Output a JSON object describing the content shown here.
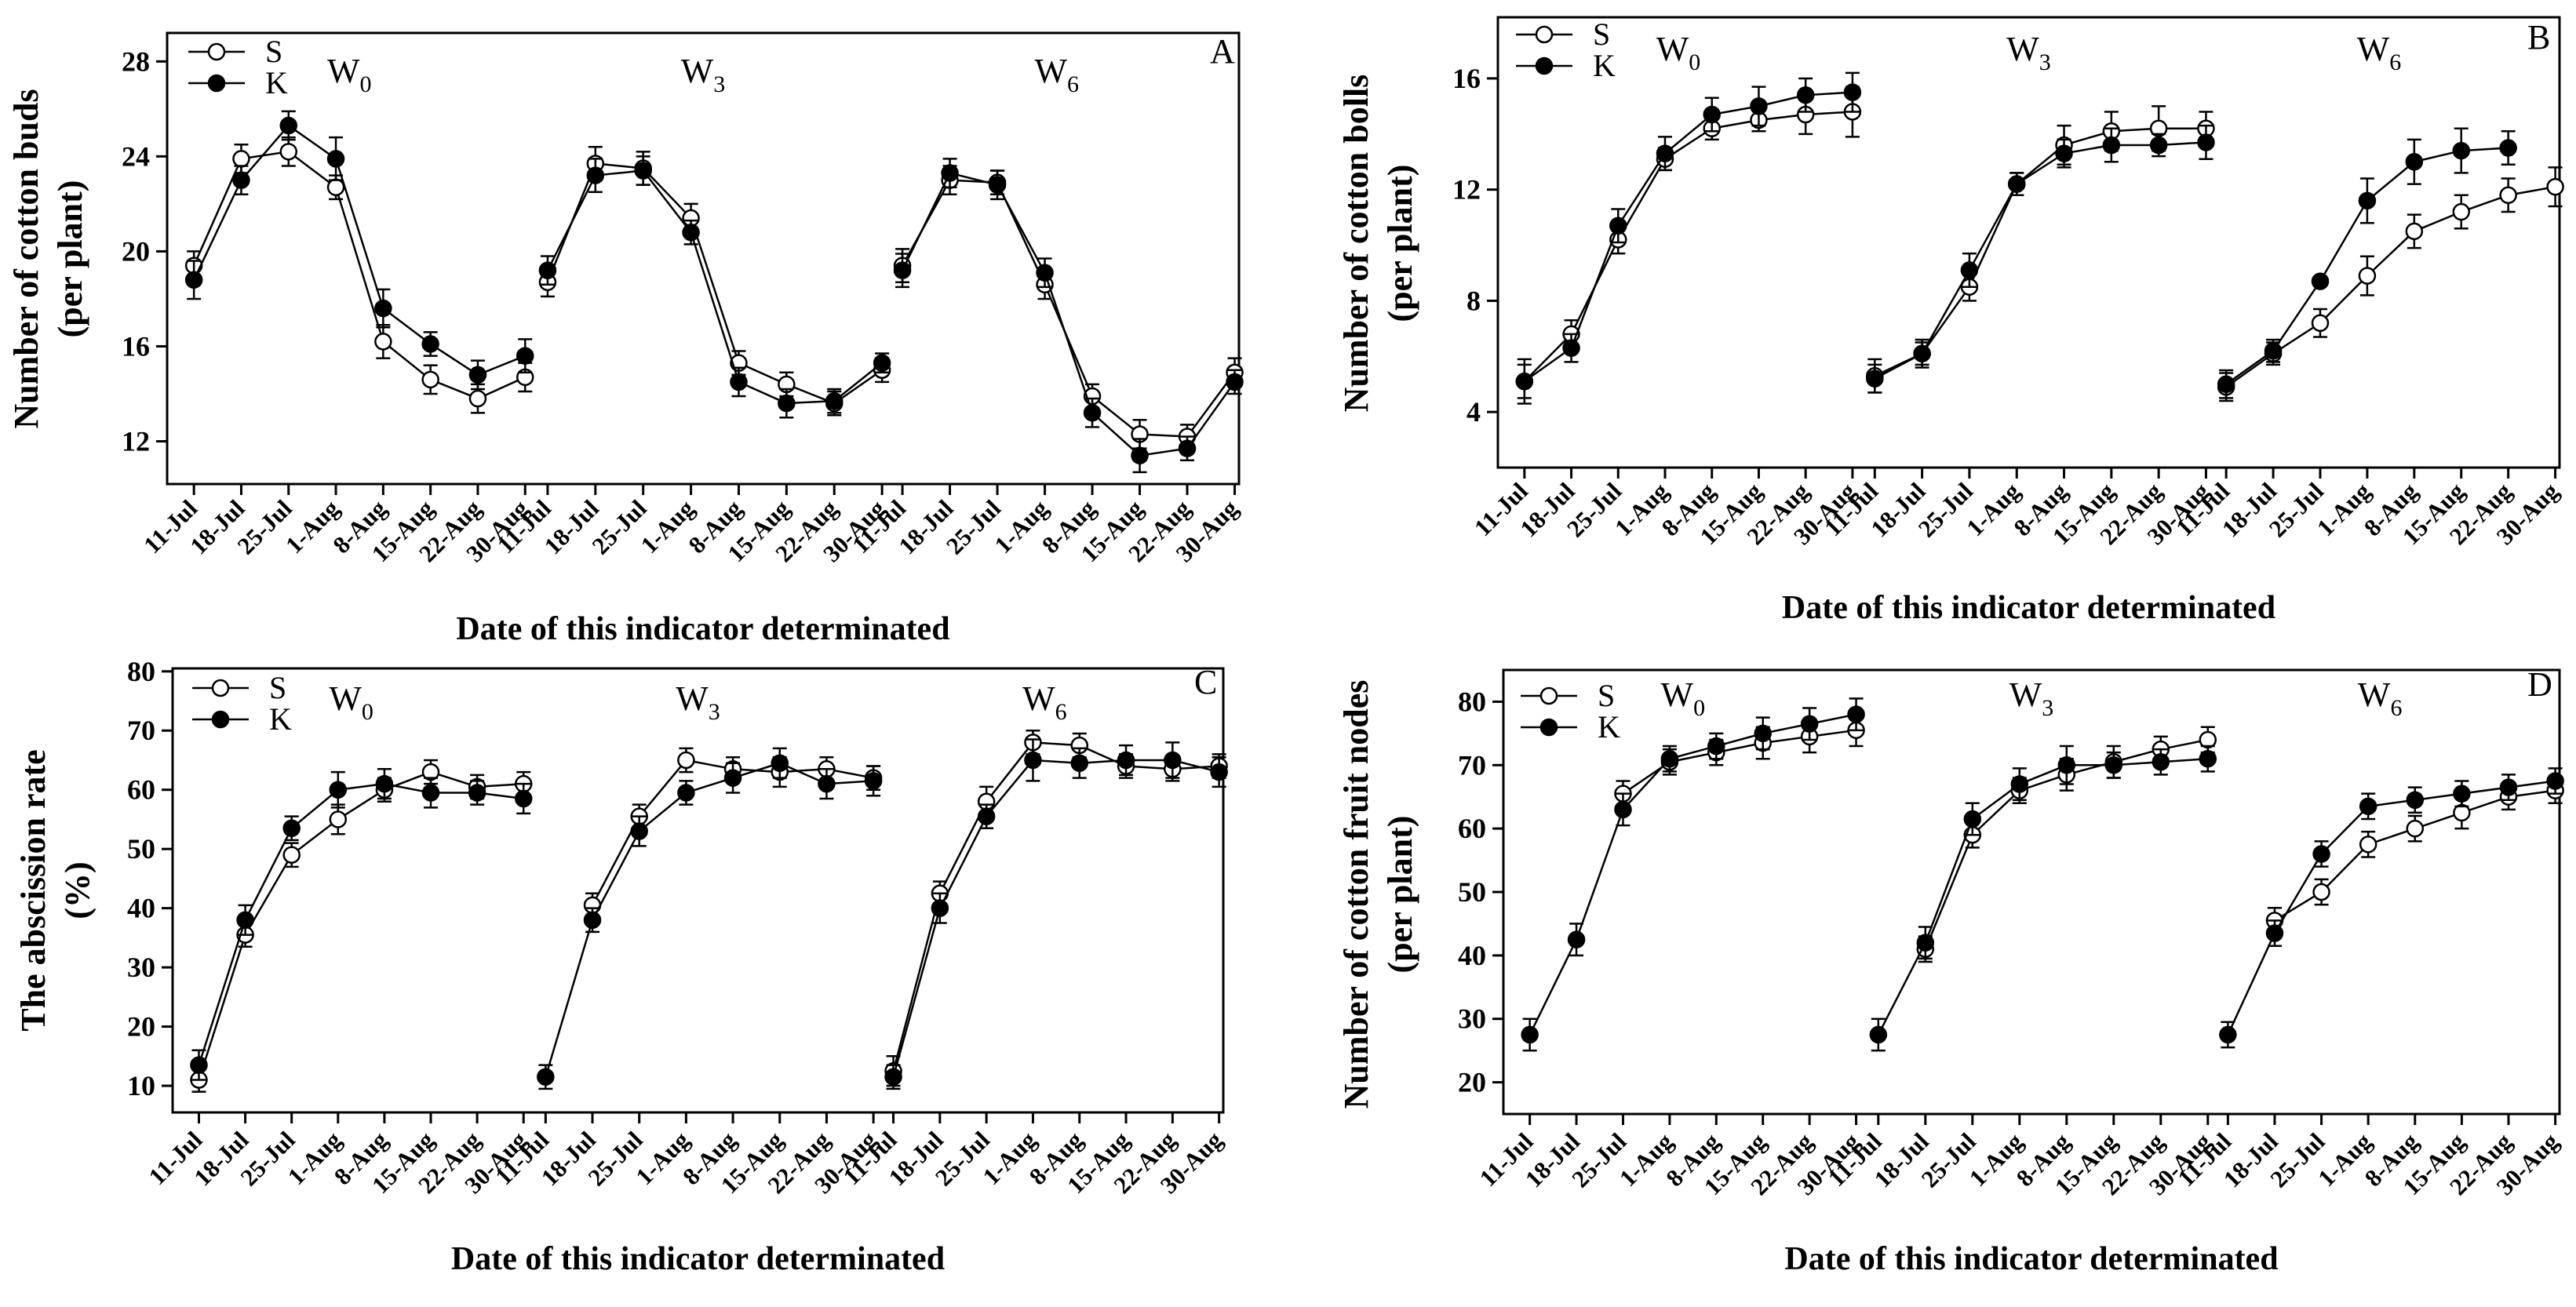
{
  "figure": {
    "x_axis_label": "Date of  this indicator determinated",
    "legend": [
      "S",
      "K"
    ],
    "colors": {
      "line": "#000000",
      "open_marker_fill": "#ffffff",
      "filled_marker_fill": "#000000",
      "background": "#ffffff"
    }
  },
  "chart_data": [
    {
      "type": "line",
      "panel": "A",
      "ylabel_lines": [
        "Number of cotton buds",
        "(per plant)"
      ],
      "xlabel": "Date of  this indicator determinated",
      "ylim": [
        10.2,
        29.2
      ],
      "yticks": [
        12,
        16,
        20,
        24,
        28
      ],
      "categories": [
        "11-Jul",
        "18-Jul",
        "25-Jul",
        "1-Aug",
        "8-Aug",
        "15-Aug",
        "22-Aug",
        "30-Aug"
      ],
      "groups": [
        {
          "label": "W",
          "sub": "0",
          "series": [
            {
              "name": "S",
              "values": [
                19.4,
                23.9,
                24.2,
                22.7,
                16.2,
                14.6,
                13.8,
                14.7
              ],
              "errors": [
                0.6,
                0.6,
                0.6,
                0.5,
                0.7,
                0.6,
                0.6,
                0.6
              ]
            },
            {
              "name": "K",
              "values": [
                18.8,
                23.0,
                25.3,
                23.9,
                17.6,
                16.1,
                14.8,
                15.6
              ],
              "errors": [
                0.8,
                0.6,
                0.6,
                0.9,
                0.8,
                0.5,
                0.6,
                0.7
              ]
            }
          ]
        },
        {
          "label": "W",
          "sub": "3",
          "series": [
            {
              "name": "S",
              "values": [
                18.7,
                23.7,
                23.5,
                21.4,
                15.3,
                14.4,
                13.6,
                15.0
              ],
              "errors": [
                0.6,
                0.7,
                0.7,
                0.6,
                0.5,
                0.5,
                0.5,
                0.5
              ]
            },
            {
              "name": "K",
              "values": [
                19.2,
                23.2,
                23.4,
                20.8,
                14.5,
                13.6,
                13.7,
                15.3
              ],
              "errors": [
                0.6,
                0.7,
                0.6,
                0.5,
                0.6,
                0.6,
                0.5,
                0.4
              ]
            }
          ]
        },
        {
          "label": "W",
          "sub": "6",
          "series": [
            {
              "name": "S",
              "values": [
                19.4,
                23.0,
                22.9,
                18.6,
                13.9,
                12.3,
                12.2,
                14.9
              ],
              "errors": [
                0.7,
                0.6,
                0.5,
                0.6,
                0.5,
                0.6,
                0.5,
                0.6
              ]
            },
            {
              "name": "K",
              "values": [
                19.2,
                23.3,
                22.8,
                19.1,
                13.2,
                11.4,
                11.7,
                14.5
              ],
              "errors": [
                0.7,
                0.6,
                0.6,
                0.6,
                0.6,
                0.7,
                0.5,
                0.5
              ]
            }
          ]
        }
      ]
    },
    {
      "type": "line",
      "panel": "B",
      "ylabel_lines": [
        "Number of cotton bolls",
        "(per plant)"
      ],
      "xlabel": "Date of  this indicator determinated",
      "ylim": [
        2,
        18.2
      ],
      "yticks": [
        4,
        8,
        12,
        16
      ],
      "categories": [
        "11-Jul",
        "18-Jul",
        "25-Jul",
        "1-Aug",
        "8-Aug",
        "15-Aug",
        "22-Aug",
        "30-Aug"
      ],
      "groups": [
        {
          "label": "W",
          "sub": "0",
          "series": [
            {
              "name": "S",
              "values": [
                5.1,
                6.8,
                10.2,
                13.1,
                14.2,
                14.5,
                14.7,
                14.8
              ],
              "errors": [
                0.6,
                0.5,
                0.5,
                0.4,
                0.4,
                0.4,
                0.7,
                0.9
              ]
            },
            {
              "name": "K",
              "values": [
                5.1,
                6.3,
                10.7,
                13.3,
                14.7,
                15.0,
                15.4,
                15.5
              ],
              "errors": [
                0.8,
                0.5,
                0.6,
                0.6,
                0.6,
                0.7,
                0.6,
                0.7
              ]
            }
          ]
        },
        {
          "label": "W",
          "sub": "3",
          "series": [
            {
              "name": "S",
              "values": [
                5.3,
                6.1,
                8.5,
                12.2,
                13.6,
                14.1,
                14.2,
                14.2
              ],
              "errors": [
                0.6,
                0.4,
                0.5,
                0.4,
                0.7,
                0.7,
                0.8,
                0.6
              ]
            },
            {
              "name": "K",
              "values": [
                5.2,
                6.1,
                9.1,
                12.2,
                13.3,
                13.6,
                13.6,
                13.7
              ],
              "errors": [
                0.5,
                0.5,
                0.6,
                0.4,
                0.5,
                0.6,
                0.4,
                0.6
              ]
            }
          ]
        },
        {
          "label": "W",
          "sub": "6",
          "series": [
            {
              "name": "S",
              "values": [
                4.9,
                6.1,
                7.2,
                8.9,
                10.5,
                11.2,
                11.8,
                12.1
              ],
              "errors": [
                0.5,
                0.4,
                0.5,
                0.7,
                0.6,
                0.6,
                0.6,
                0.7
              ]
            },
            {
              "name": "K",
              "values": [
                5.0,
                6.2,
                8.7,
                11.6,
                13.0,
                13.4,
                13.5,
                null
              ],
              "errors": [
                0.5,
                0.4,
                0.0,
                0.8,
                0.8,
                0.8,
                0.6,
                null
              ]
            }
          ]
        }
      ]
    },
    {
      "type": "line",
      "panel": "C",
      "ylabel_lines": [
        "The abscission rate",
        "(%)"
      ],
      "xlabel": "Date of  this indicator determinated",
      "ylim": [
        5.5,
        80.5
      ],
      "yticks": [
        10,
        20,
        30,
        40,
        50,
        60,
        70,
        80
      ],
      "categories": [
        "11-Jul",
        "18-Jul",
        "25-Jul",
        "1-Aug",
        "8-Aug",
        "15-Aug",
        "22-Aug",
        "30-Aug"
      ],
      "groups": [
        {
          "label": "W",
          "sub": "0",
          "series": [
            {
              "name": "S",
              "values": [
                11.0,
                35.5,
                49.0,
                55.0,
                60.0,
                63.0,
                60.5,
                61.0
              ],
              "errors": [
                2.0,
                2.0,
                2.0,
                2.5,
                2.0,
                2.0,
                2.0,
                2.0
              ]
            },
            {
              "name": "K",
              "values": [
                13.5,
                38.0,
                53.5,
                60.0,
                61.0,
                59.5,
                59.5,
                58.5
              ],
              "errors": [
                2.5,
                2.5,
                2.0,
                3.0,
                2.5,
                2.5,
                2.0,
                2.5
              ]
            }
          ]
        },
        {
          "label": "W",
          "sub": "3",
          "series": [
            {
              "name": "S",
              "values": [
                null,
                40.5,
                55.5,
                65.0,
                63.5,
                63.0,
                63.5,
                62.0
              ],
              "errors": [
                null,
                2.0,
                2.0,
                2.0,
                2.0,
                2.5,
                2.0,
                2.0
              ]
            },
            {
              "name": "K",
              "values": [
                11.5,
                38.0,
                53.0,
                59.5,
                62.0,
                64.5,
                61.0,
                61.5
              ],
              "errors": [
                2.0,
                2.0,
                2.5,
                2.0,
                2.5,
                2.5,
                2.5,
                2.5
              ]
            }
          ]
        },
        {
          "label": "W",
          "sub": "6",
          "series": [
            {
              "name": "S",
              "values": [
                12.5,
                42.5,
                58.0,
                68.0,
                67.5,
                64.0,
                63.5,
                64.0
              ],
              "errors": [
                2.5,
                2.0,
                2.5,
                2.0,
                2.0,
                2.0,
                2.0,
                2.0
              ]
            },
            {
              "name": "K",
              "values": [
                11.5,
                40.0,
                55.5,
                65.0,
                64.5,
                65.0,
                65.0,
                63.0
              ],
              "errors": [
                2.0,
                2.5,
                2.0,
                3.5,
                2.5,
                2.5,
                3.0,
                2.5
              ]
            }
          ]
        }
      ]
    },
    {
      "type": "line",
      "panel": "D",
      "ylabel_lines": [
        "Number of cotton fruit nodes",
        "(per plant)"
      ],
      "xlabel": "Date of  this indicator determinated",
      "ylim": [
        15,
        85
      ],
      "yticks": [
        20,
        30,
        40,
        50,
        60,
        70,
        80
      ],
      "categories": [
        "11-Jul",
        "18-Jul",
        "25-Jul",
        "1-Aug",
        "8-Aug",
        "15-Aug",
        "22-Aug",
        "30-Aug"
      ],
      "groups": [
        {
          "label": "W",
          "sub": "0",
          "series": [
            {
              "name": "S",
              "values": [
                null,
                null,
                65.5,
                70.5,
                72.0,
                73.5,
                74.5,
                75.5
              ],
              "errors": [
                null,
                null,
                2.0,
                2.0,
                2.0,
                2.5,
                2.5,
                2.5
              ]
            },
            {
              "name": "K",
              "values": [
                27.5,
                42.5,
                63.0,
                71.0,
                73.0,
                75.0,
                76.5,
                78.0
              ],
              "errors": [
                2.5,
                2.5,
                2.5,
                2.0,
                2.0,
                2.5,
                2.5,
                2.5
              ]
            }
          ]
        },
        {
          "label": "W",
          "sub": "3",
          "series": [
            {
              "name": "S",
              "values": [
                null,
                41.0,
                59.0,
                66.0,
                68.5,
                70.5,
                72.5,
                74.0
              ],
              "errors": [
                null,
                2.0,
                2.0,
                2.0,
                2.5,
                2.5,
                2.0,
                2.0
              ]
            },
            {
              "name": "K",
              "values": [
                27.5,
                42.0,
                61.5,
                67.0,
                70.0,
                70.0,
                70.5,
                71.0
              ],
              "errors": [
                2.5,
                2.5,
                2.5,
                2.5,
                3.0,
                2.0,
                2.0,
                2.0
              ]
            }
          ]
        },
        {
          "label": "W",
          "sub": "6",
          "series": [
            {
              "name": "S",
              "values": [
                null,
                45.5,
                50.0,
                57.5,
                60.0,
                62.5,
                65.0,
                66.0
              ],
              "errors": [
                null,
                2.0,
                2.0,
                2.0,
                2.0,
                2.5,
                2.0,
                2.0
              ]
            },
            {
              "name": "K",
              "values": [
                27.5,
                43.5,
                56.0,
                63.5,
                64.5,
                65.5,
                66.5,
                67.5
              ],
              "errors": [
                2.0,
                2.0,
                2.0,
                2.0,
                2.0,
                2.0,
                2.0,
                2.0
              ]
            }
          ]
        }
      ]
    }
  ]
}
